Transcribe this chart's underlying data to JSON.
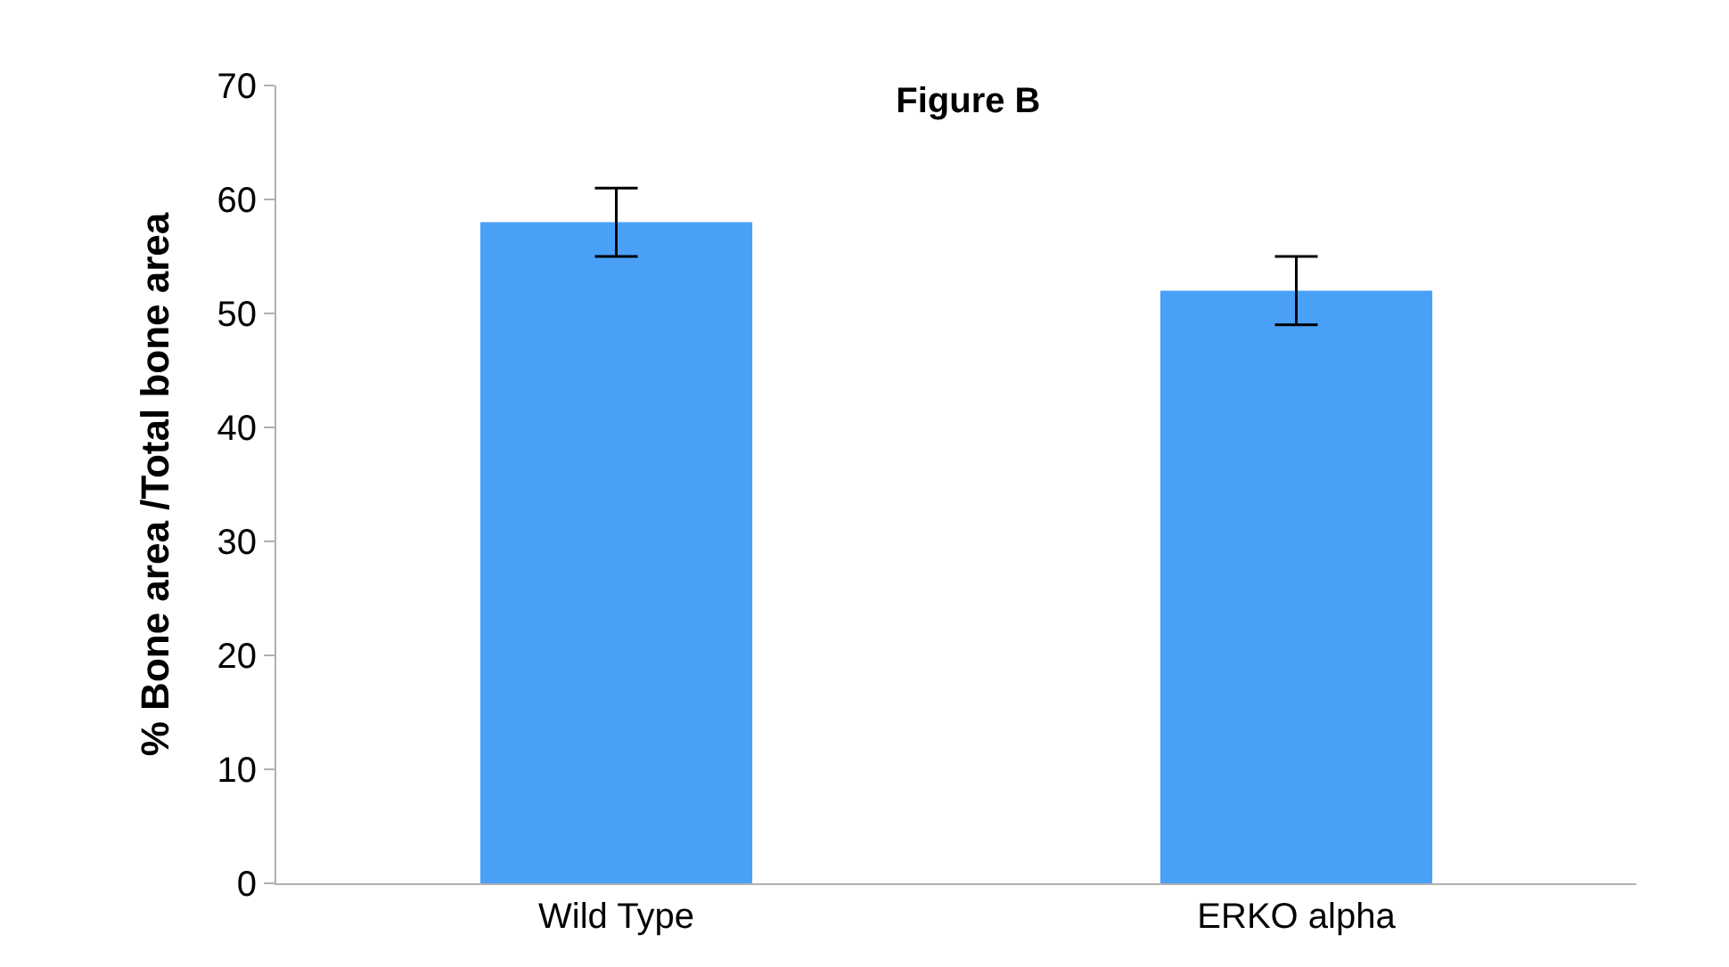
{
  "chart_data": {
    "type": "bar",
    "title": "Figure B",
    "ylabel": "% Bone area /Total bone area",
    "categories": [
      "Wild Type",
      "ERKO alpha"
    ],
    "values": [
      58,
      52
    ],
    "errors": [
      3,
      3
    ],
    "color": "#4aa0f7",
    "ylim": [
      0,
      70
    ],
    "yticks": [
      0,
      10,
      20,
      30,
      40,
      50,
      60,
      70
    ]
  }
}
